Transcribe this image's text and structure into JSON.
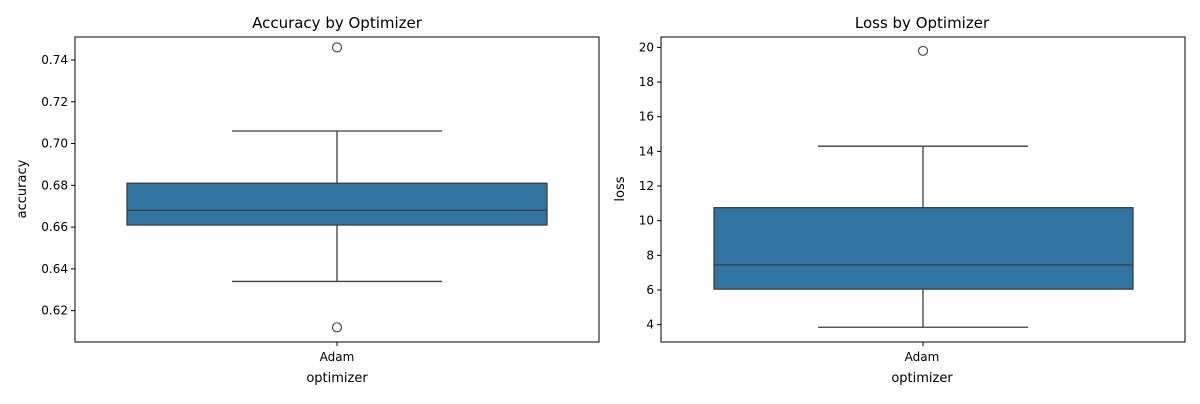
{
  "colors": {
    "box_fill": "#3274a1",
    "line": "#3d3d3d",
    "axis": "#000000",
    "background": "#ffffff"
  },
  "chart_data": [
    {
      "type": "box",
      "title": "Accuracy by Optimizer",
      "xlabel": "optimizer",
      "ylabel": "accuracy",
      "categories": [
        "Adam"
      ],
      "ylim": [
        0.605,
        0.751
      ],
      "yticks": [
        "0.62",
        "0.64",
        "0.66",
        "0.68",
        "0.70",
        "0.72",
        "0.74"
      ],
      "boxes": [
        {
          "category": "Adam",
          "whisker_low": 0.634,
          "q1": 0.661,
          "median": 0.668,
          "q3": 0.681,
          "whisker_high": 0.706,
          "outliers": [
            0.746,
            0.612
          ]
        }
      ],
      "grid": false,
      "legend": "none"
    },
    {
      "type": "box",
      "title": "Loss by Optimizer",
      "xlabel": "optimizer",
      "ylabel": "loss",
      "categories": [
        "Adam"
      ],
      "ylim": [
        3.0,
        20.6
      ],
      "yticks": [
        "4",
        "6",
        "8",
        "10",
        "12",
        "14",
        "16",
        "18",
        "20"
      ],
      "boxes": [
        {
          "category": "Adam",
          "whisker_low": 3.85,
          "q1": 6.05,
          "median": 7.45,
          "q3": 10.75,
          "whisker_high": 14.3,
          "outliers": [
            19.8
          ]
        }
      ],
      "grid": false,
      "legend": "none"
    }
  ]
}
